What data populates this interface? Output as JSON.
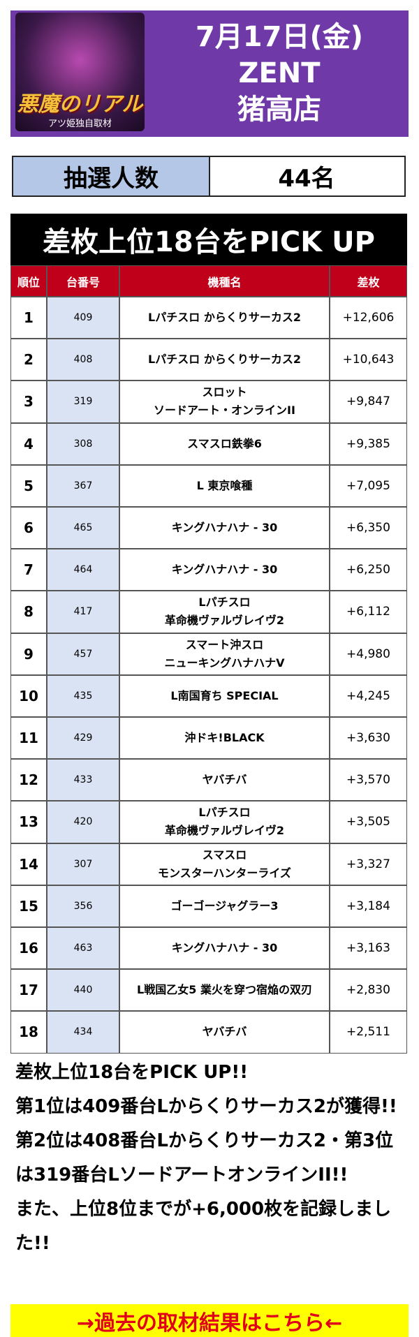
{
  "header": {
    "logo_title": "悪魔のリアル",
    "logo_subtitle": "アツ姫独自取材",
    "date": "7月17日(金)",
    "hall": "ZENT",
    "branch": "猪高店"
  },
  "lottery": {
    "label": "抽選人数",
    "value": "44名"
  },
  "table": {
    "title": "差枚上位18台をPICK UP",
    "columns": [
      "順位",
      "台番号",
      "機種名",
      "差枚"
    ],
    "rows": [
      [
        "1",
        "409",
        [
          "Lパチスロ からくりサーカス2"
        ],
        "+12,606"
      ],
      [
        "2",
        "408",
        [
          "Lパチスロ からくりサーカス2"
        ],
        "+10,643"
      ],
      [
        "3",
        "319",
        [
          "スロット",
          "ソードアート・オンラインII"
        ],
        "+9,847"
      ],
      [
        "4",
        "308",
        [
          "スマスロ鉄拳6"
        ],
        "+9,385"
      ],
      [
        "5",
        "367",
        [
          "L 東京喰種"
        ],
        "+7,095"
      ],
      [
        "6",
        "465",
        [
          "キングハナハナ - 30"
        ],
        "+6,350"
      ],
      [
        "7",
        "464",
        [
          "キングハナハナ - 30"
        ],
        "+6,250"
      ],
      [
        "8",
        "417",
        [
          "Lパチスロ",
          "革命機ヴァルヴレイヴ2"
        ],
        "+6,112"
      ],
      [
        "9",
        "457",
        [
          "スマート沖スロ",
          "ニューキングハナハナV"
        ],
        "+4,980"
      ],
      [
        "10",
        "435",
        [
          "L南国育ち SPECIAL"
        ],
        "+4,245"
      ],
      [
        "11",
        "429",
        [
          "沖ドキ!BLACK"
        ],
        "+3,630"
      ],
      [
        "12",
        "433",
        [
          "ヤバチバ"
        ],
        "+3,570"
      ],
      [
        "13",
        "420",
        [
          "Lパチスロ",
          "革命機ヴァルヴレイヴ2"
        ],
        "+3,505"
      ],
      [
        "14",
        "307",
        [
          "スマスロ",
          "モンスターハンターライズ"
        ],
        "+3,327"
      ],
      [
        "15",
        "356",
        [
          "ゴーゴージャグラー3"
        ],
        "+3,184"
      ],
      [
        "16",
        "463",
        [
          "キングハナハナ - 30"
        ],
        "+3,163"
      ],
      [
        "17",
        "440",
        [
          "L戦国乙女5 業火を穿つ宿焔の双刃"
        ],
        "+2,830"
      ],
      [
        "18",
        "434",
        [
          "ヤバチバ"
        ],
        "+2,511"
      ]
    ]
  },
  "summary": [
    "差枚上位18台をPICK UP!!",
    "第1位は409番台Lからくりサーカス2が獲得!! 第2位は408番台Lからくりサーカス2・第3位は319番台LソードアートオンラインII!!",
    "また、上位8位までが+6,000枚を記録しました!!"
  ],
  "link": "→過去の取材結果はこちら←"
}
